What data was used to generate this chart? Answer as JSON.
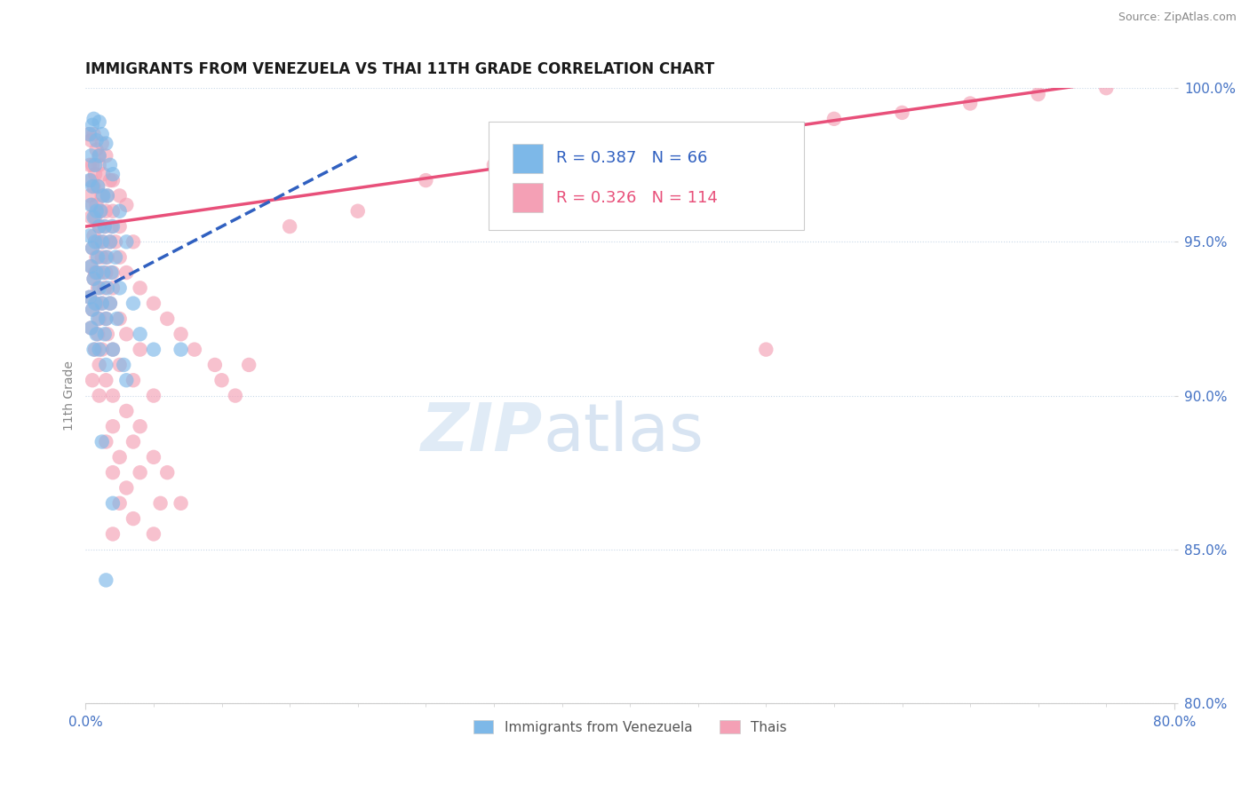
{
  "title": "IMMIGRANTS FROM VENEZUELA VS THAI 11TH GRADE CORRELATION CHART",
  "source": "Source: ZipAtlas.com",
  "ylabel": "11th Grade",
  "xlim": [
    0.0,
    80.0
  ],
  "ylim": [
    80.0,
    100.0
  ],
  "xticks": [
    0.0,
    80.0
  ],
  "yticks": [
    80.0,
    85.0,
    90.0,
    95.0,
    100.0
  ],
  "legend_labels": [
    "Immigrants from Venezuela",
    "Thais"
  ],
  "legend_r_n": [
    {
      "R": "0.387",
      "N": "66"
    },
    {
      "R": "0.326",
      "N": "114"
    }
  ],
  "blue_color": "#7db8e8",
  "pink_color": "#f4a0b5",
  "blue_line_color": "#3060c0",
  "pink_line_color": "#e8507a",
  "watermark_zip": "ZIP",
  "watermark_atlas": "atlas",
  "tick_color": "#4472c4",
  "background_color": "#ffffff",
  "blue_scatter": [
    [
      0.3,
      98.5
    ],
    [
      0.5,
      98.8
    ],
    [
      0.6,
      99.0
    ],
    [
      1.0,
      98.9
    ],
    [
      0.8,
      98.3
    ],
    [
      1.2,
      98.5
    ],
    [
      1.5,
      98.2
    ],
    [
      0.4,
      97.8
    ],
    [
      0.7,
      97.5
    ],
    [
      1.0,
      97.8
    ],
    [
      1.8,
      97.5
    ],
    [
      2.0,
      97.2
    ],
    [
      0.3,
      97.0
    ],
    [
      0.5,
      96.8
    ],
    [
      0.9,
      96.8
    ],
    [
      1.3,
      96.5
    ],
    [
      1.6,
      96.5
    ],
    [
      0.4,
      96.2
    ],
    [
      0.8,
      96.0
    ],
    [
      1.1,
      96.0
    ],
    [
      2.5,
      96.0
    ],
    [
      0.6,
      95.8
    ],
    [
      1.0,
      95.5
    ],
    [
      1.4,
      95.5
    ],
    [
      2.0,
      95.5
    ],
    [
      0.3,
      95.2
    ],
    [
      0.7,
      95.0
    ],
    [
      1.2,
      95.0
    ],
    [
      1.8,
      95.0
    ],
    [
      3.0,
      95.0
    ],
    [
      0.5,
      94.8
    ],
    [
      0.9,
      94.5
    ],
    [
      1.5,
      94.5
    ],
    [
      2.2,
      94.5
    ],
    [
      0.4,
      94.2
    ],
    [
      0.8,
      94.0
    ],
    [
      1.3,
      94.0
    ],
    [
      1.9,
      94.0
    ],
    [
      0.6,
      93.8
    ],
    [
      1.0,
      93.5
    ],
    [
      1.6,
      93.5
    ],
    [
      2.5,
      93.5
    ],
    [
      0.3,
      93.2
    ],
    [
      0.7,
      93.0
    ],
    [
      1.2,
      93.0
    ],
    [
      1.8,
      93.0
    ],
    [
      3.5,
      93.0
    ],
    [
      0.5,
      92.8
    ],
    [
      0.9,
      92.5
    ],
    [
      1.5,
      92.5
    ],
    [
      2.3,
      92.5
    ],
    [
      0.4,
      92.2
    ],
    [
      0.8,
      92.0
    ],
    [
      1.4,
      92.0
    ],
    [
      4.0,
      92.0
    ],
    [
      0.6,
      91.5
    ],
    [
      1.0,
      91.5
    ],
    [
      2.0,
      91.5
    ],
    [
      1.5,
      91.0
    ],
    [
      2.8,
      91.0
    ],
    [
      5.0,
      91.5
    ],
    [
      3.0,
      90.5
    ],
    [
      7.0,
      91.5
    ],
    [
      1.2,
      88.5
    ],
    [
      2.0,
      86.5
    ],
    [
      1.5,
      84.0
    ]
  ],
  "pink_scatter": [
    [
      0.2,
      98.5
    ],
    [
      0.4,
      98.3
    ],
    [
      0.6,
      98.5
    ],
    [
      0.8,
      98.0
    ],
    [
      1.0,
      97.8
    ],
    [
      1.2,
      98.2
    ],
    [
      1.5,
      97.8
    ],
    [
      0.3,
      97.5
    ],
    [
      0.5,
      97.5
    ],
    [
      0.7,
      97.2
    ],
    [
      1.0,
      97.5
    ],
    [
      1.3,
      97.2
    ],
    [
      1.8,
      97.0
    ],
    [
      2.0,
      97.0
    ],
    [
      0.4,
      97.0
    ],
    [
      0.6,
      96.8
    ],
    [
      0.9,
      96.8
    ],
    [
      1.2,
      96.5
    ],
    [
      1.6,
      96.5
    ],
    [
      2.5,
      96.5
    ],
    [
      0.3,
      96.5
    ],
    [
      0.5,
      96.2
    ],
    [
      0.8,
      96.2
    ],
    [
      1.1,
      96.0
    ],
    [
      1.5,
      96.0
    ],
    [
      2.0,
      96.0
    ],
    [
      3.0,
      96.2
    ],
    [
      0.4,
      95.8
    ],
    [
      0.7,
      95.8
    ],
    [
      1.0,
      95.5
    ],
    [
      1.4,
      95.5
    ],
    [
      1.9,
      95.5
    ],
    [
      2.5,
      95.5
    ],
    [
      0.6,
      95.2
    ],
    [
      0.9,
      95.0
    ],
    [
      1.3,
      95.0
    ],
    [
      1.8,
      95.0
    ],
    [
      2.2,
      95.0
    ],
    [
      3.5,
      95.0
    ],
    [
      0.5,
      94.8
    ],
    [
      0.8,
      94.5
    ],
    [
      1.2,
      94.5
    ],
    [
      1.6,
      94.5
    ],
    [
      2.5,
      94.5
    ],
    [
      0.4,
      94.2
    ],
    [
      0.7,
      94.0
    ],
    [
      1.0,
      94.0
    ],
    [
      1.5,
      94.0
    ],
    [
      2.0,
      94.0
    ],
    [
      3.0,
      94.0
    ],
    [
      0.6,
      93.8
    ],
    [
      0.9,
      93.5
    ],
    [
      1.4,
      93.5
    ],
    [
      2.0,
      93.5
    ],
    [
      4.0,
      93.5
    ],
    [
      0.3,
      93.2
    ],
    [
      0.8,
      93.0
    ],
    [
      1.2,
      93.0
    ],
    [
      1.8,
      93.0
    ],
    [
      0.5,
      92.8
    ],
    [
      1.0,
      92.5
    ],
    [
      1.5,
      92.5
    ],
    [
      2.5,
      92.5
    ],
    [
      5.0,
      93.0
    ],
    [
      0.4,
      92.2
    ],
    [
      0.9,
      92.0
    ],
    [
      1.6,
      92.0
    ],
    [
      3.0,
      92.0
    ],
    [
      6.0,
      92.5
    ],
    [
      0.7,
      91.5
    ],
    [
      1.2,
      91.5
    ],
    [
      2.0,
      91.5
    ],
    [
      4.0,
      91.5
    ],
    [
      7.0,
      92.0
    ],
    [
      1.0,
      91.0
    ],
    [
      2.5,
      91.0
    ],
    [
      0.5,
      90.5
    ],
    [
      1.5,
      90.5
    ],
    [
      3.5,
      90.5
    ],
    [
      8.0,
      91.5
    ],
    [
      1.0,
      90.0
    ],
    [
      2.0,
      90.0
    ],
    [
      5.0,
      90.0
    ],
    [
      3.0,
      89.5
    ],
    [
      9.5,
      91.0
    ],
    [
      2.0,
      89.0
    ],
    [
      4.0,
      89.0
    ],
    [
      1.5,
      88.5
    ],
    [
      3.5,
      88.5
    ],
    [
      10.0,
      90.5
    ],
    [
      2.5,
      88.0
    ],
    [
      5.0,
      88.0
    ],
    [
      2.0,
      87.5
    ],
    [
      4.0,
      87.5
    ],
    [
      11.0,
      90.0
    ],
    [
      3.0,
      87.0
    ],
    [
      6.0,
      87.5
    ],
    [
      2.5,
      86.5
    ],
    [
      5.5,
      86.5
    ],
    [
      12.0,
      91.0
    ],
    [
      3.5,
      86.0
    ],
    [
      7.0,
      86.5
    ],
    [
      2.0,
      85.5
    ],
    [
      5.0,
      85.5
    ],
    [
      15.0,
      95.5
    ],
    [
      20.0,
      96.0
    ],
    [
      25.0,
      97.0
    ],
    [
      30.0,
      97.5
    ],
    [
      35.0,
      97.8
    ],
    [
      40.0,
      98.0
    ],
    [
      45.0,
      98.3
    ],
    [
      50.0,
      98.5
    ],
    [
      55.0,
      99.0
    ],
    [
      60.0,
      99.2
    ],
    [
      65.0,
      99.5
    ],
    [
      70.0,
      99.8
    ],
    [
      75.0,
      100.0
    ],
    [
      50.0,
      91.5
    ]
  ],
  "blue_line": [
    [
      0,
      93.2
    ],
    [
      20,
      97.8
    ]
  ],
  "pink_line": [
    [
      0,
      95.5
    ],
    [
      75,
      100.2
    ]
  ]
}
